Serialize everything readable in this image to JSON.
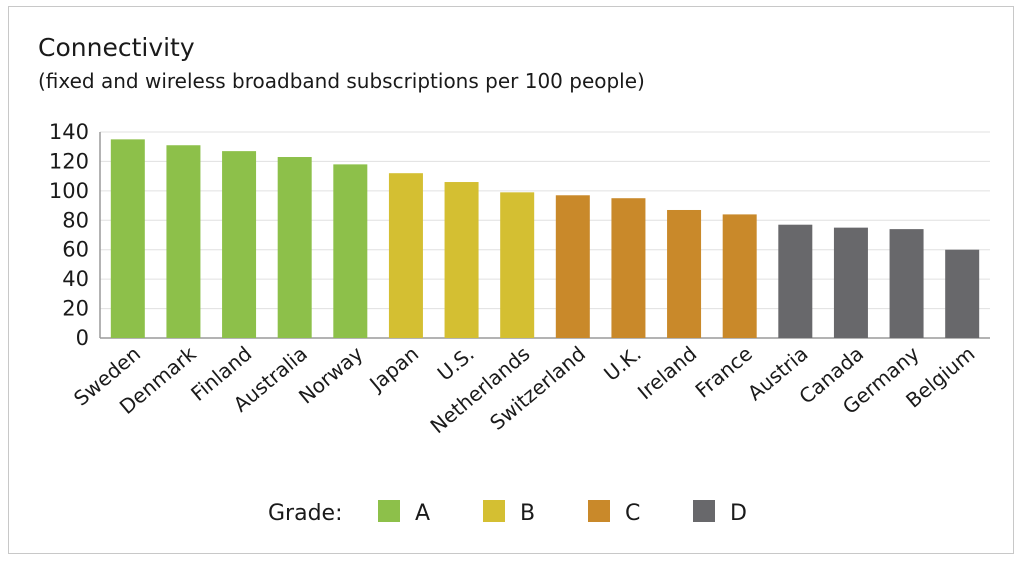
{
  "chart_data": {
    "type": "bar",
    "title": "Connectivity",
    "subtitle": "(fixed and wireless broadband subscriptions per 100 people)",
    "categories": [
      "Sweden",
      "Denmark",
      "Finland",
      "Australia",
      "Norway",
      "Japan",
      "U.S.",
      "Netherlands",
      "Switzerland",
      "U.K.",
      "Ireland",
      "France",
      "Austria",
      "Canada",
      "Germany",
      "Belgium"
    ],
    "values": [
      135,
      131,
      127,
      123,
      118,
      112,
      106,
      99,
      97,
      95,
      87,
      84,
      77,
      75,
      74,
      60
    ],
    "grades": [
      "A",
      "A",
      "A",
      "A",
      "A",
      "B",
      "B",
      "B",
      "C",
      "C",
      "C",
      "C",
      "D",
      "D",
      "D",
      "D"
    ],
    "yticks": [
      0,
      20,
      40,
      60,
      80,
      100,
      120,
      140
    ],
    "ylim": [
      0,
      140
    ],
    "grid": true,
    "legend": {
      "label": "Grade:",
      "position": "bottom",
      "items": [
        {
          "grade": "A",
          "color": "#8dc04a"
        },
        {
          "grade": "B",
          "color": "#d4bf32"
        },
        {
          "grade": "C",
          "color": "#c9892a"
        },
        {
          "grade": "D",
          "color": "#68686b"
        }
      ]
    }
  }
}
